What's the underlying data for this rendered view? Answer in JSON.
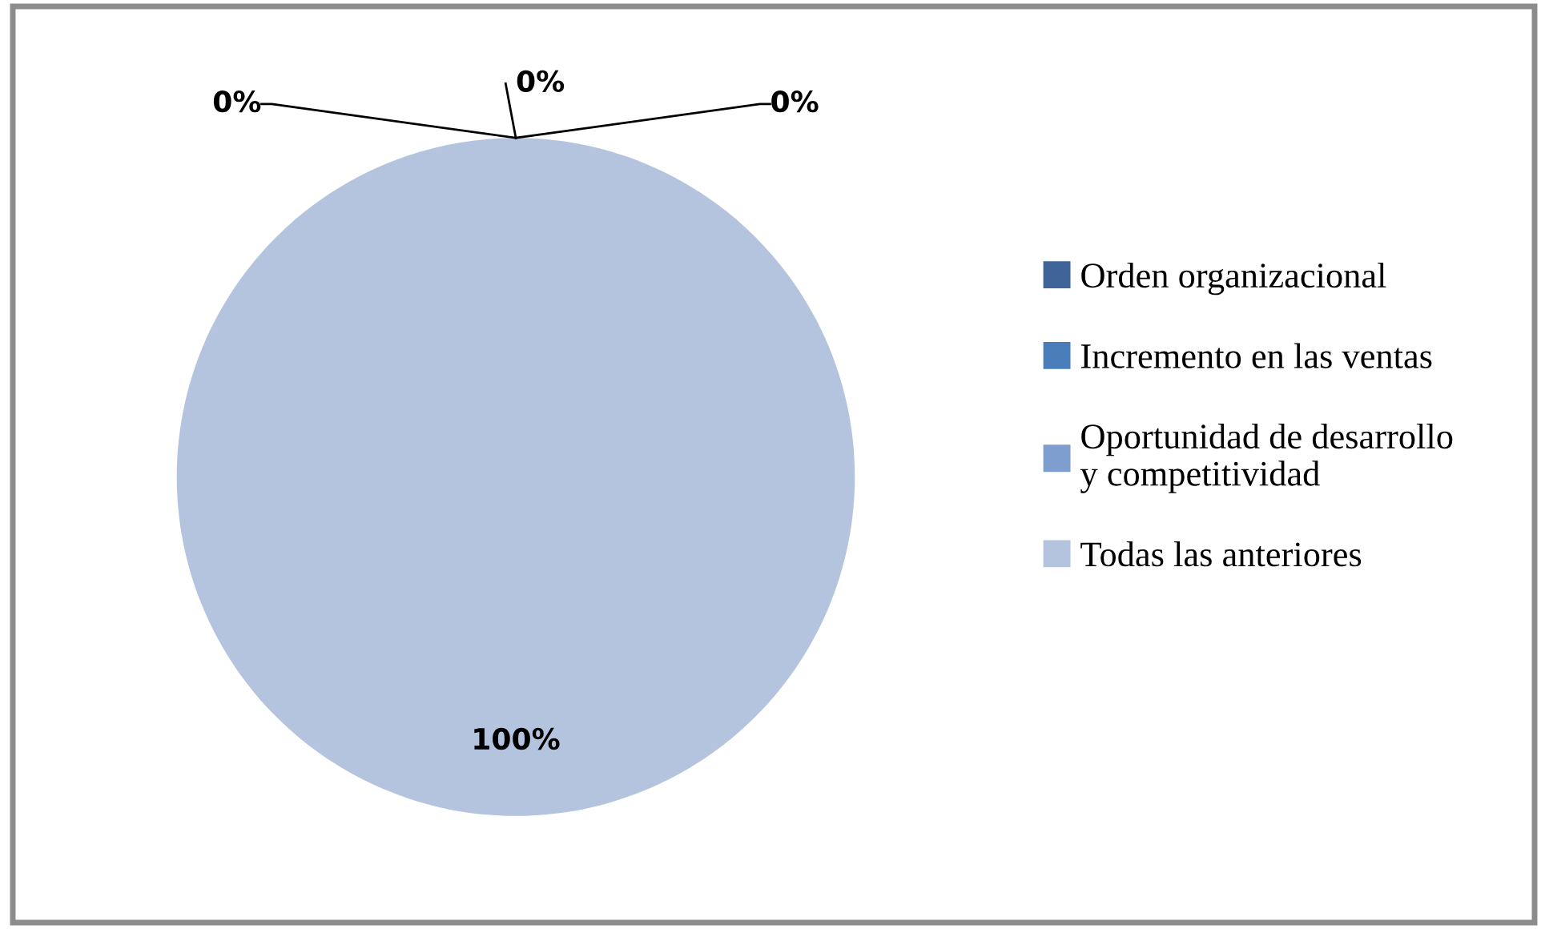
{
  "chart_data": {
    "type": "pie",
    "categories": [
      "Orden organizacional",
      "Incremento en las ventas",
      "Oportunidad de desarrollo y competitividad",
      "Todas las anteriores"
    ],
    "values": [
      0,
      0,
      0,
      100
    ],
    "value_labels": [
      "0%",
      "0%",
      "0%",
      "100%"
    ],
    "colors": [
      "#3e6498",
      "#4a7ebb",
      "#7f9ed0",
      "#b5c4de"
    ],
    "legend": "right"
  }
}
